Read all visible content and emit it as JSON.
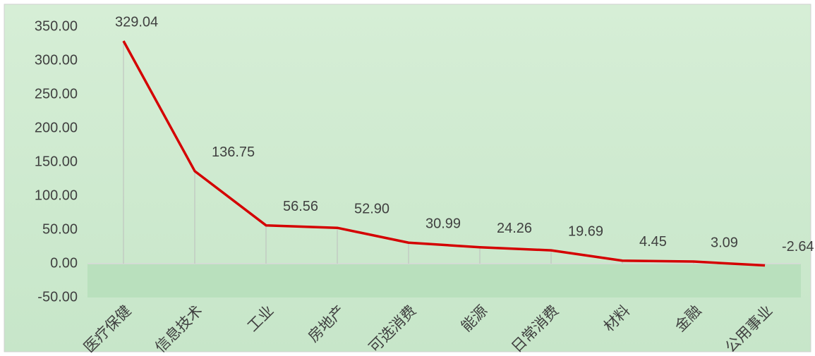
{
  "chart_data": {
    "type": "line",
    "categories": [
      "医疗保健",
      "信息技术",
      "工业",
      "房地产",
      "可选消费",
      "能源",
      "日常消费",
      "材料",
      "金融",
      "公用事业"
    ],
    "series": [
      {
        "color": "#d40000",
        "values": [
          329.04,
          136.75,
          56.56,
          52.9,
          30.99,
          24.26,
          19.69,
          4.45,
          3.09,
          -2.64
        ],
        "value_labels": [
          "329.04",
          "136.75",
          "56.56",
          "52.90",
          "30.99",
          "24.26",
          "19.69",
          "4.45",
          "3.09",
          "-2.64"
        ]
      }
    ],
    "ylim": [
      -50,
      350
    ],
    "yticks": [
      {
        "value": -50,
        "label": "-50.00"
      },
      {
        "value": 0,
        "label": "0.00"
      },
      {
        "value": 50,
        "label": "50.00"
      },
      {
        "value": 100,
        "label": "100.00"
      },
      {
        "value": 150,
        "label": "150.00"
      },
      {
        "value": 200,
        "label": "200.00"
      },
      {
        "value": 250,
        "label": "250.00"
      },
      {
        "value": 300,
        "label": "300.00"
      },
      {
        "value": 350,
        "label": "350.00"
      }
    ],
    "grid": false
  }
}
